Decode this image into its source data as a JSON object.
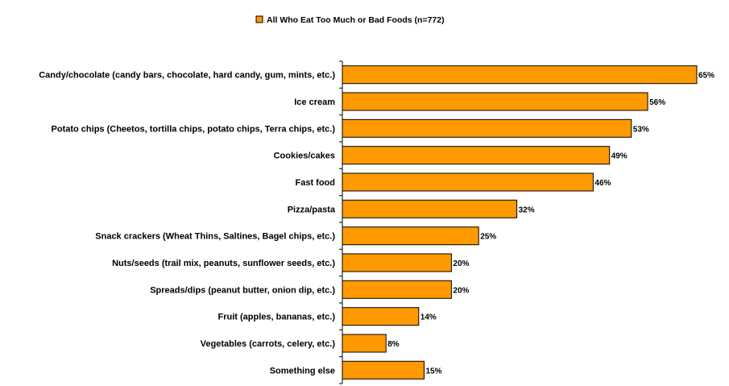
{
  "chart_data": {
    "type": "bar",
    "orientation": "horizontal",
    "categories": [
      "Candy/chocolate (candy bars, chocolate, hard candy, gum, mints, etc.)",
      "Ice cream",
      "Potato chips (Cheetos, tortilla chips, potato chips, Terra chips, etc.)",
      "Cookies/cakes",
      "Fast food",
      "Pizza/pasta",
      "Snack crackers (Wheat Thins, Saltines, Bagel chips, etc.)",
      "Nuts/seeds (trail mix, peanuts, sunflower seeds, etc.)",
      "Spreads/dips (peanut butter, onion dip, etc.)",
      "Fruit (apples, bananas, etc.)",
      "Vegetables (carrots, celery, etc.)",
      "Something else"
    ],
    "series": [
      {
        "name": "All Who Eat Too Much or Bad Foods (n=772)",
        "values": [
          65,
          56,
          53,
          49,
          46,
          32,
          25,
          20,
          20,
          14,
          8,
          15
        ],
        "labels": [
          "65%",
          "56%",
          "53%",
          "49%",
          "46%",
          "32%",
          "25%",
          "20%",
          "20%",
          "14%",
          "8%",
          "15%"
        ],
        "color": "#FF9900"
      }
    ],
    "xlim": [
      0,
      65
    ],
    "legend_position": "top-center",
    "grid": false
  }
}
